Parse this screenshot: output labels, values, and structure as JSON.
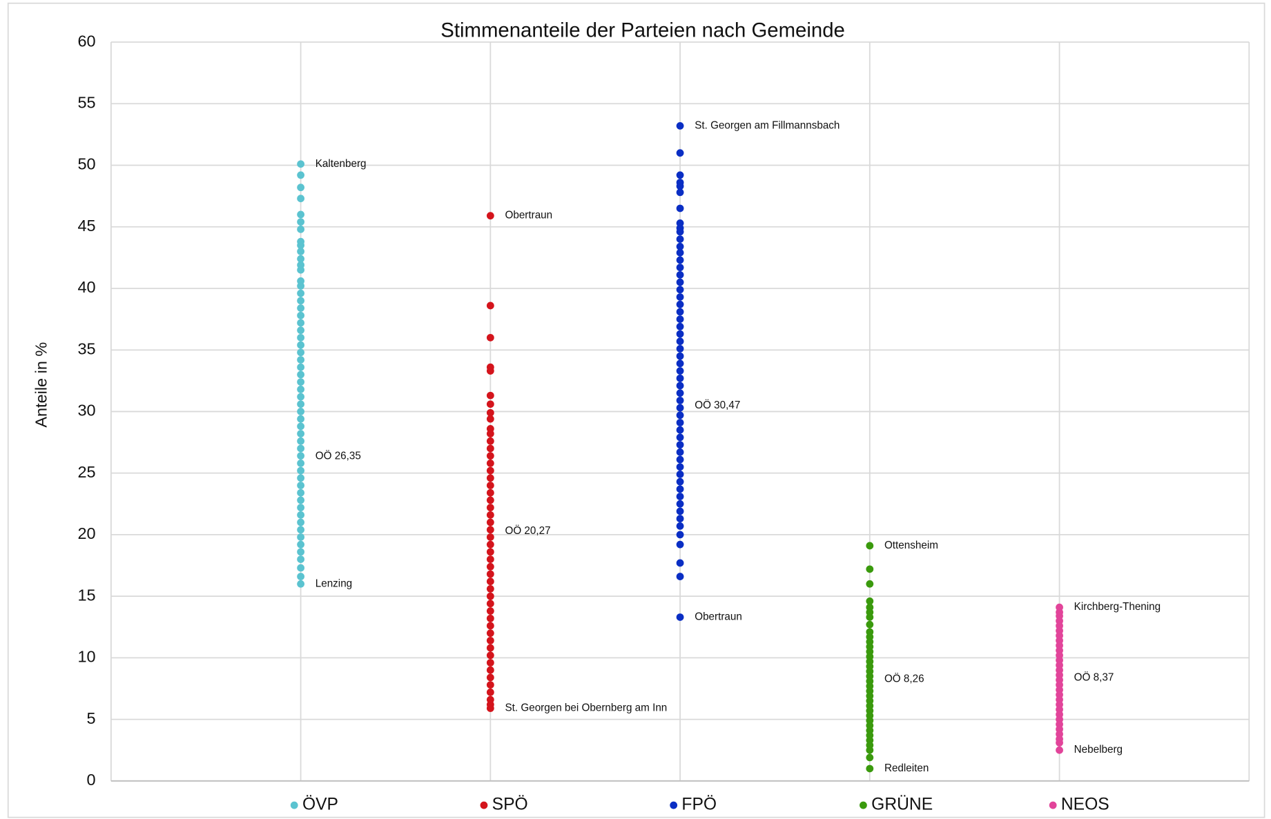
{
  "chart_data": {
    "type": "scatter",
    "title": "Stimmenanteile der Parteien nach Gemeinde",
    "y_label": "Anteile in %",
    "ylim": [
      0,
      60
    ],
    "yticks": [
      0,
      5,
      10,
      15,
      20,
      25,
      30,
      35,
      40,
      45,
      50,
      55,
      60
    ],
    "grid": true,
    "legend": "bottom",
    "series": [
      {
        "name": "ÖVP",
        "color": "#5bc3d0",
        "values": [
          50.1,
          49.2,
          48.2,
          47.3,
          46,
          45.4,
          44.8,
          43.8,
          43.5,
          43,
          42.4,
          41.9,
          41.5,
          40.6,
          40.2,
          39.6,
          39,
          38.4,
          37.8,
          37.2,
          36.6,
          36,
          35.4,
          34.8,
          34.2,
          33.6,
          33,
          32.4,
          31.8,
          31.2,
          30.6,
          30,
          29.4,
          28.8,
          28.2,
          27.6,
          27,
          26.4,
          25.8,
          25.2,
          24.6,
          24,
          23.4,
          22.8,
          22.2,
          21.6,
          21,
          20.4,
          19.8,
          19.2,
          18.6,
          18,
          17.3,
          16.6,
          16
        ]
      },
      {
        "name": "SPÖ",
        "color": "#d4141c",
        "values": [
          45.9,
          38.6,
          36,
          33.6,
          33.3,
          31.3,
          30.6,
          29.9,
          29.4,
          28.6,
          28.2,
          27.6,
          27,
          26.4,
          25.8,
          25.2,
          24.6,
          24,
          23.4,
          22.8,
          22.2,
          21.6,
          21,
          20.4,
          19.8,
          19.2,
          18.6,
          18,
          17.4,
          16.8,
          16.2,
          15.6,
          15,
          14.4,
          13.8,
          13.2,
          12.6,
          12,
          11.4,
          10.8,
          10.2,
          9.6,
          9,
          8.4,
          7.8,
          7.2,
          6.6,
          6.2,
          5.9
        ]
      },
      {
        "name": "FPÖ",
        "color": "#0a2ec4",
        "values": [
          53.2,
          51,
          49.2,
          48.6,
          48.3,
          47.8,
          46.5,
          45.3,
          44.9,
          44.6,
          44,
          43.4,
          42.9,
          42.3,
          41.7,
          41.1,
          40.5,
          39.9,
          39.3,
          38.7,
          38.1,
          37.5,
          36.9,
          36.3,
          35.7,
          35.1,
          34.5,
          33.9,
          33.3,
          32.7,
          32.1,
          31.5,
          30.9,
          30.3,
          29.7,
          29.1,
          28.5,
          27.9,
          27.3,
          26.7,
          26.1,
          25.5,
          24.9,
          24.3,
          23.7,
          23.1,
          22.5,
          21.9,
          21.3,
          20.7,
          20,
          19.2,
          17.7,
          16.6,
          13.3
        ]
      },
      {
        "name": "GRÜNE",
        "color": "#3a9a0d",
        "values": [
          19.1,
          17.2,
          16,
          14.6,
          14.1,
          13.7,
          13.3,
          12.7,
          12.1,
          11.7,
          11.3,
          10.9,
          10.5,
          10.1,
          9.7,
          9.3,
          8.9,
          8.5,
          8.1,
          7.7,
          7.3,
          6.9,
          6.5,
          6.1,
          5.7,
          5.3,
          4.9,
          4.5,
          4.1,
          3.7,
          3.3,
          2.9,
          2.5,
          1.9,
          1
        ]
      },
      {
        "name": "NEOS",
        "color": "#e2449a",
        "values": [
          14.1,
          13.7,
          13.4,
          13,
          12.6,
          12.2,
          11.8,
          11.4,
          11,
          10.6,
          10.2,
          9.8,
          9.4,
          9,
          8.6,
          8.2,
          7.8,
          7.4,
          7,
          6.6,
          6.2,
          5.8,
          5.4,
          5,
          4.6,
          4.2,
          3.8,
          3.4,
          3.1,
          2.5
        ]
      }
    ],
    "annotations": [
      {
        "text": "Kaltenberg",
        "series": 0,
        "value": 50.1
      },
      {
        "text": "OÖ 26,35",
        "series": 0,
        "value": 26.35
      },
      {
        "text": "Lenzing",
        "series": 0,
        "value": 16
      },
      {
        "text": "Obertraun",
        "series": 1,
        "value": 45.9
      },
      {
        "text": "OÖ 20,27",
        "series": 1,
        "value": 20.27
      },
      {
        "text": "St. Georgen bei Obernberg am Inn",
        "series": 1,
        "value": 5.9
      },
      {
        "text": "St. Georgen am Fillmannsbach",
        "series": 2,
        "value": 53.2
      },
      {
        "text": "OÖ 30,47",
        "series": 2,
        "value": 30.47
      },
      {
        "text": "Obertraun",
        "series": 2,
        "value": 13.3
      },
      {
        "text": "Ottensheim",
        "series": 3,
        "value": 19.1
      },
      {
        "text": "OÖ 8,26",
        "series": 3,
        "value": 8.26
      },
      {
        "text": "Redleiten",
        "series": 3,
        "value": 1
      },
      {
        "text": "Kirchberg-Thening",
        "series": 4,
        "value": 14.1
      },
      {
        "text": "OÖ 8,37",
        "series": 4,
        "value": 8.37
      },
      {
        "text": "Nebelberg",
        "series": 4,
        "value": 2.5
      }
    ]
  }
}
